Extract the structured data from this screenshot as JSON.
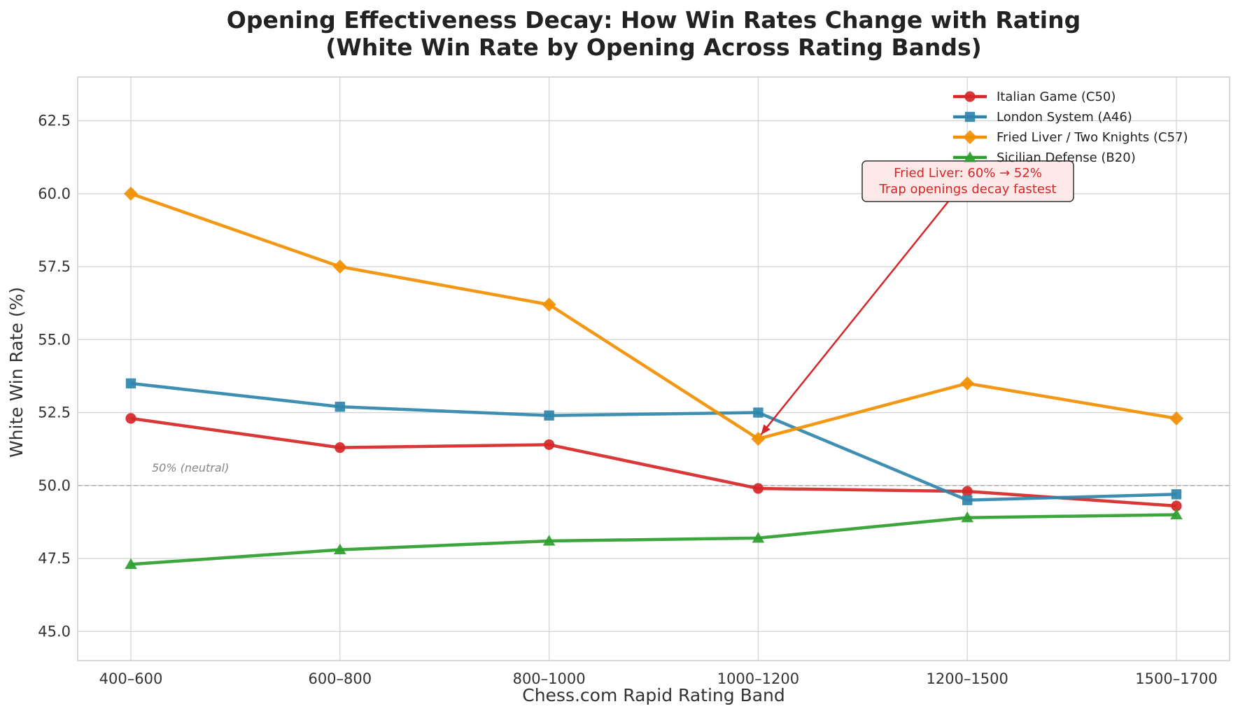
{
  "chart_data": {
    "type": "line",
    "title": "Opening Effectiveness Decay: How Win Rates Change with Rating",
    "subtitle": "(White Win Rate by Opening Across Rating Bands)",
    "xlabel": "Chess.com Rapid Rating Band",
    "ylabel": "White Win Rate (%)",
    "categories": [
      "400–600",
      "600–800",
      "800–1000",
      "1000–1200",
      "1200–1500",
      "1500–1700"
    ],
    "ylim": [
      44.0,
      64.0
    ],
    "yticks": [
      "45.0",
      "47.5",
      "50.0",
      "52.5",
      "55.0",
      "57.5",
      "60.0",
      "62.5"
    ],
    "grid": true,
    "legend_position": "top-right",
    "series": [
      {
        "name": "Italian Game (C50)",
        "color": "#d62728",
        "marker": "circle",
        "values": [
          52.3,
          51.3,
          51.4,
          49.9,
          49.8,
          49.3
        ]
      },
      {
        "name": "London System (A46)",
        "color": "#2e86ab",
        "marker": "square",
        "values": [
          53.5,
          52.7,
          52.4,
          52.5,
          49.5,
          49.7
        ]
      },
      {
        "name": "Fried Liver / Two Knights (C57)",
        "color": "#f18f01",
        "marker": "diamond",
        "values": [
          60.0,
          57.5,
          56.2,
          51.6,
          53.5,
          52.3
        ]
      },
      {
        "name": "Sicilian Defense (B20)",
        "color": "#2ca02c",
        "marker": "triangle",
        "values": [
          47.3,
          47.8,
          48.1,
          48.2,
          48.9,
          49.0
        ]
      }
    ],
    "reference_line": {
      "value": 50.0,
      "label": "50% (neutral)"
    },
    "annotation": {
      "lines": [
        "Fried Liver: 60% → 52%",
        "Trap openings decay fastest"
      ],
      "points_to": {
        "category": "1000–1200",
        "value": 51.6
      },
      "color": "#d62728"
    }
  }
}
